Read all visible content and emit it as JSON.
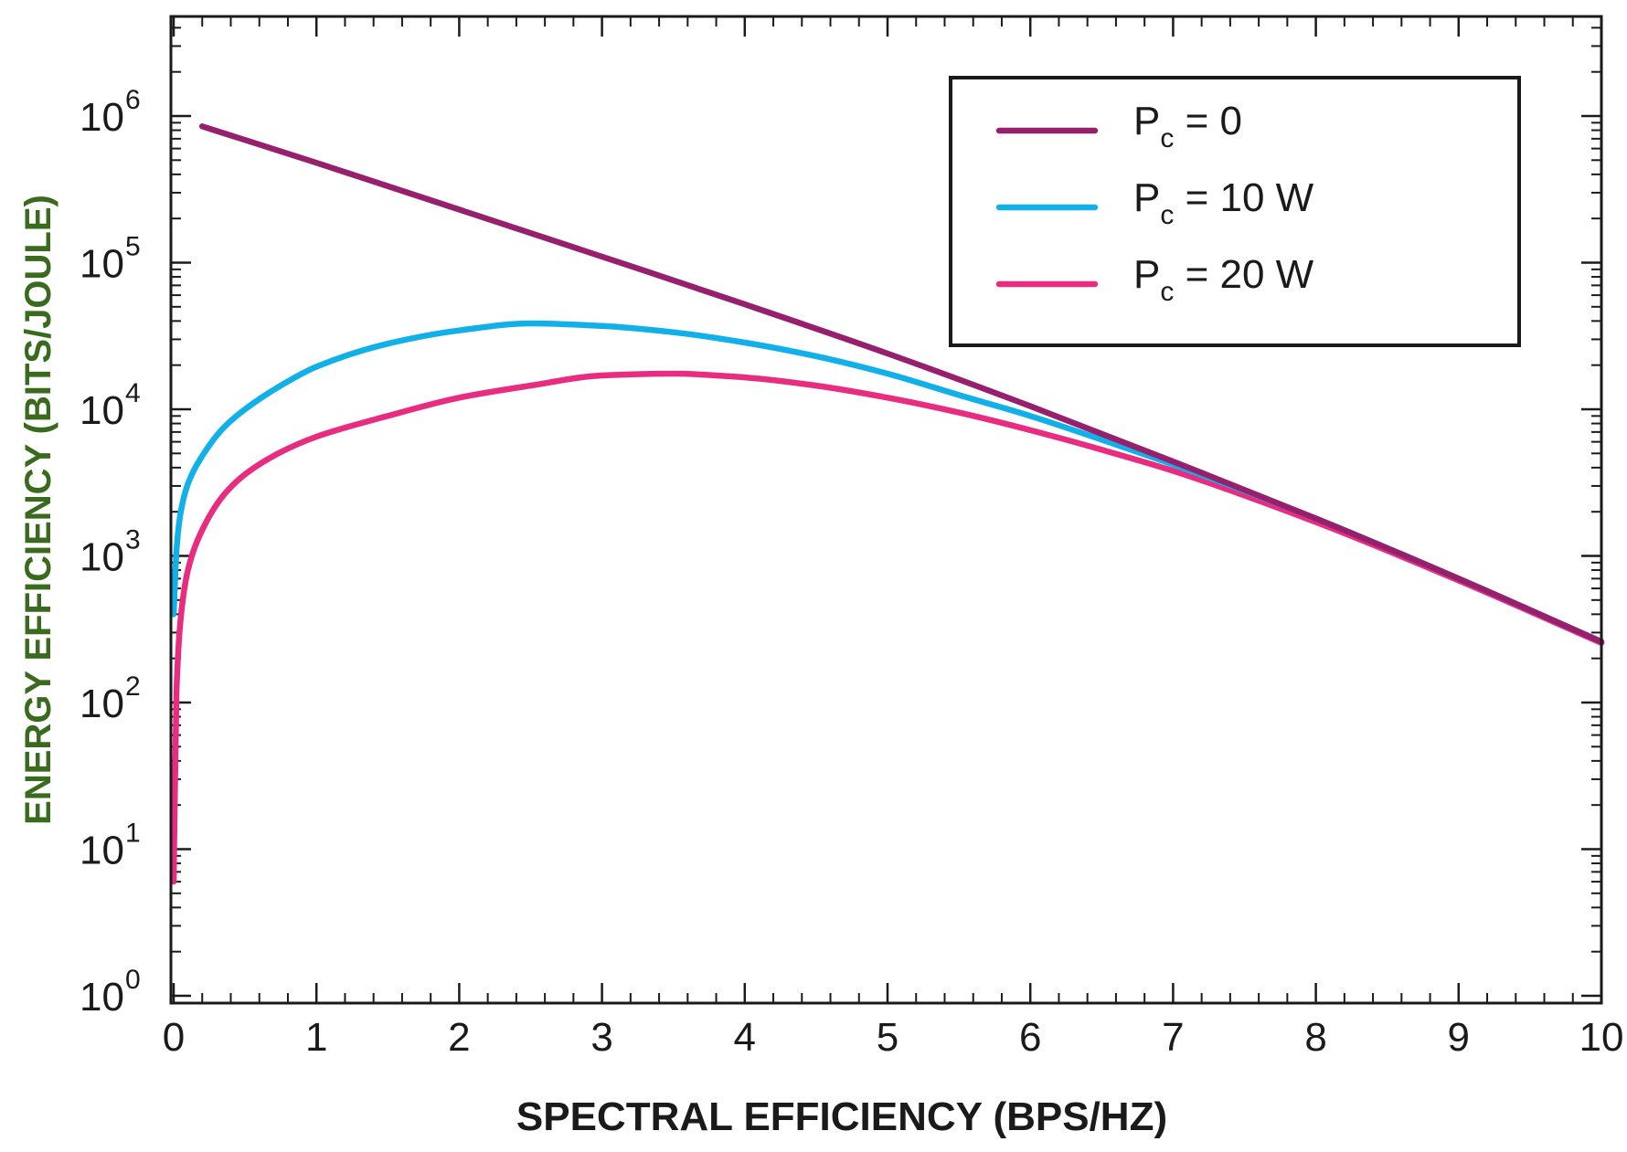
{
  "chart_data": {
    "type": "line",
    "title": "",
    "xlabel": "SPECTRAL EFFICIENCY (BPS/HZ)",
    "ylabel": "ENERGY EFFICIENCY (BITS/JOULE)",
    "xlim": [
      0,
      10
    ],
    "ylim": [
      1,
      10000000
    ],
    "yscale": "log",
    "grid": false,
    "legend_position": "top-right",
    "x_ticks": [
      "0",
      "1",
      "2",
      "3",
      "4",
      "5",
      "6",
      "7",
      "8",
      "9",
      "10"
    ],
    "y_ticks": [
      {
        "base": "10",
        "exp": "0"
      },
      {
        "base": "10",
        "exp": "1"
      },
      {
        "base": "10",
        "exp": "2"
      },
      {
        "base": "10",
        "exp": "3"
      },
      {
        "base": "10",
        "exp": "4"
      },
      {
        "base": "10",
        "exp": "5"
      },
      {
        "base": "10",
        "exp": "6"
      }
    ],
    "series": [
      {
        "name": "Pc = 0",
        "legend_main": "P",
        "legend_sub": "c",
        "legend_rest": " = 0",
        "color": "#96206e",
        "x": [
          0.2,
          1,
          2,
          3,
          4,
          5,
          6,
          7,
          8,
          9,
          10
        ],
        "y": [
          850000,
          480000,
          230000,
          110000,
          52000,
          24000,
          10500,
          4400,
          1800,
          700,
          260
        ]
      },
      {
        "name": "Pc = 10 W",
        "legend_main": "P",
        "legend_sub": "c",
        "legend_rest": " = 10 W",
        "color": "#12b0e8",
        "x": [
          0.0,
          0.02,
          0.05,
          0.1,
          0.2,
          0.35,
          0.5,
          0.75,
          1,
          1.5,
          2,
          2.5,
          3,
          3.5,
          4,
          4.5,
          5,
          5.5,
          6,
          6.5,
          7,
          8,
          9,
          10
        ],
        "y": [
          400,
          1100,
          2000,
          3100,
          4800,
          7500,
          10000,
          14500,
          19500,
          28000,
          34500,
          38500,
          37000,
          33500,
          28500,
          23000,
          17500,
          12500,
          9000,
          6200,
          4200,
          1800,
          700,
          260
        ]
      },
      {
        "name": "Pc = 20 W",
        "legend_main": "P",
        "legend_sub": "c",
        "legend_rest": " = 20 W",
        "color": "#e82c80",
        "x": [
          0.0,
          0.02,
          0.05,
          0.1,
          0.2,
          0.35,
          0.5,
          0.75,
          1,
          1.5,
          2,
          2.5,
          3,
          3.5,
          4,
          4.5,
          5,
          5.5,
          6,
          6.5,
          7,
          8,
          9,
          10
        ],
        "y": [
          6,
          120,
          380,
          800,
          1500,
          2600,
          3600,
          5100,
          6500,
          9000,
          12000,
          14500,
          17000,
          17500,
          16500,
          14500,
          12000,
          9500,
          7200,
          5300,
          3800,
          1700,
          680,
          255
        ]
      }
    ]
  }
}
